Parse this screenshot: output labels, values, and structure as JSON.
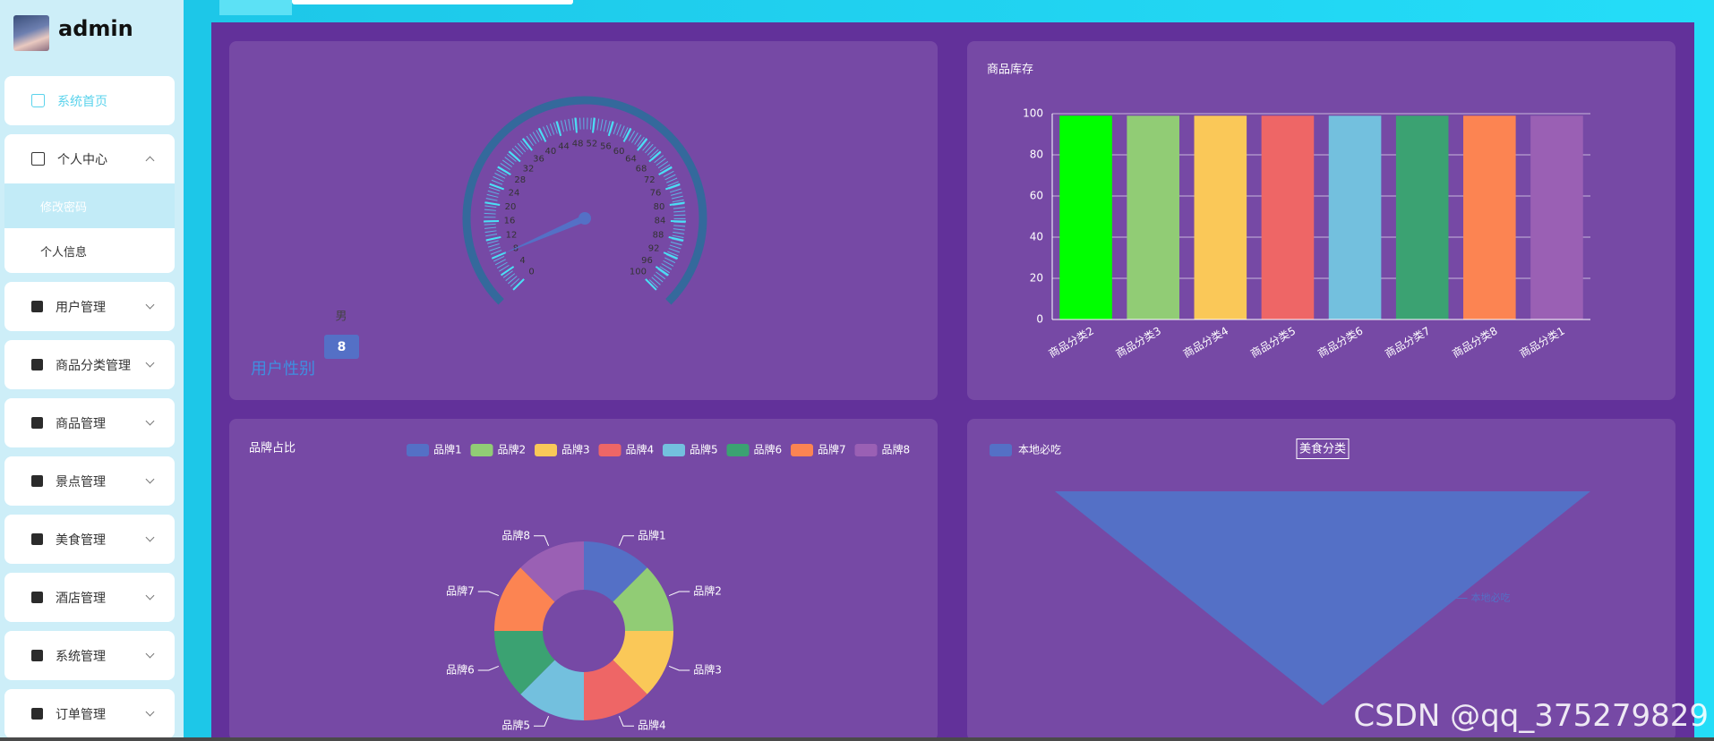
{
  "sidebar": {
    "username": "admin",
    "menu": [
      {
        "label": "系统首页"
      },
      {
        "label": "个人中心",
        "children": [
          "修改密码",
          "个人信息"
        ]
      },
      {
        "label": "用户管理"
      },
      {
        "label": "商品分类管理"
      },
      {
        "label": "商品管理"
      },
      {
        "label": "景点管理"
      },
      {
        "label": "美食管理"
      },
      {
        "label": "酒店管理"
      },
      {
        "label": "系统管理"
      },
      {
        "label": "订单管理"
      }
    ]
  },
  "chart_data": [
    {
      "type": "gauge",
      "title": "用户性别",
      "name": "男",
      "value": 8,
      "lim": [
        0,
        100
      ],
      "ticks": [
        0,
        4,
        8,
        12,
        16,
        20,
        24,
        28,
        32,
        36,
        40,
        44,
        48,
        52,
        56,
        60,
        64,
        68,
        72,
        76,
        80,
        84,
        88,
        92,
        96,
        100
      ],
      "color": "#5470c6"
    },
    {
      "type": "bar",
      "title": "商品库存",
      "categories": [
        "商品分类2",
        "商品分类3",
        "商品分类4",
        "商品分类5",
        "商品分类6",
        "商品分类7",
        "商品分类8",
        "商品分类1"
      ],
      "values": [
        99,
        99,
        99,
        99,
        99,
        99,
        99,
        99
      ],
      "colors": [
        "#00ff00",
        "#91cc75",
        "#fac858",
        "#ee6666",
        "#73c0de",
        "#3ba272",
        "#fc8452",
        "#9a60b4"
      ],
      "ylim": [
        0,
        100
      ],
      "yticks": [
        0,
        20,
        40,
        60,
        80,
        100
      ],
      "grid": true
    },
    {
      "type": "pie",
      "title": "品牌占比",
      "categories": [
        "品牌1",
        "品牌2",
        "品牌3",
        "品牌4",
        "品牌5",
        "品牌6",
        "品牌7",
        "品牌8"
      ],
      "values": [
        12.5,
        12.5,
        12.5,
        12.5,
        12.5,
        12.5,
        12.5,
        12.5
      ],
      "colors": [
        "#5470c6",
        "#91cc75",
        "#fac858",
        "#ee6666",
        "#73c0de",
        "#3ba272",
        "#fc8452",
        "#9a60b4"
      ],
      "legend": "top-right"
    },
    {
      "type": "funnel",
      "title": "美食分类",
      "categories": [
        "本地必吃"
      ],
      "values": [
        100
      ],
      "colors": [
        "#5470c6"
      ],
      "legend": "top-left"
    }
  ],
  "watermark": "CSDN @qq_375279829"
}
